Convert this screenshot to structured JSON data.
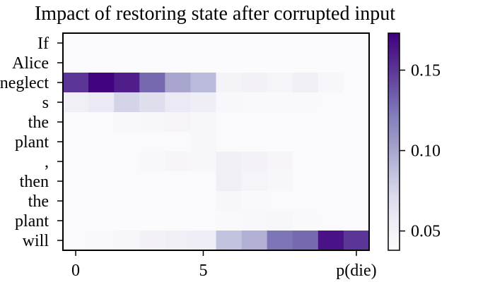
{
  "chart_data": {
    "type": "heatmap",
    "title": "Impact of restoring state after corrupted input",
    "y_labels": [
      "If",
      "Alice",
      "neglect",
      "s",
      "the",
      "plant",
      ",",
      "then",
      "the",
      "plant",
      "will"
    ],
    "x_tick_labels": [
      "0",
      "5",
      "p(die)"
    ],
    "x_tick_positions": [
      0,
      5,
      11
    ],
    "colorbar": {
      "min": 0.038,
      "max": 0.173,
      "ticks": [
        0.05,
        0.1,
        0.15
      ],
      "tick_labels": [
        "0.05",
        "0.10",
        "0.15"
      ],
      "colormap": "Purples",
      "colors": [
        "#fcfbfd",
        "#efedf5",
        "#dadaeb",
        "#bcbddc",
        "#9e9ac8",
        "#807dba",
        "#6a51a3",
        "#54278f",
        "#3f007d"
      ]
    },
    "values": [
      [
        0.039,
        0.039,
        0.039,
        0.039,
        0.039,
        0.039,
        0.039,
        0.039,
        0.039,
        0.039,
        0.039,
        0.039
      ],
      [
        0.039,
        0.039,
        0.039,
        0.039,
        0.039,
        0.039,
        0.039,
        0.039,
        0.039,
        0.039,
        0.039,
        0.039
      ],
      [
        0.15,
        0.172,
        0.16,
        0.13,
        0.1,
        0.09,
        0.048,
        0.05,
        0.047,
        0.052,
        0.044,
        0.039
      ],
      [
        0.052,
        0.058,
        0.075,
        0.068,
        0.058,
        0.055,
        0.043,
        0.042,
        0.042,
        0.042,
        0.041,
        0.04
      ],
      [
        0.04,
        0.041,
        0.043,
        0.044,
        0.046,
        0.044,
        0.041,
        0.04,
        0.04,
        0.04,
        0.04,
        0.039
      ],
      [
        0.039,
        0.039,
        0.04,
        0.04,
        0.041,
        0.044,
        0.04,
        0.04,
        0.039,
        0.039,
        0.039,
        0.039
      ],
      [
        0.039,
        0.04,
        0.041,
        0.043,
        0.045,
        0.044,
        0.051,
        0.049,
        0.045,
        0.041,
        0.04,
        0.039
      ],
      [
        0.039,
        0.039,
        0.04,
        0.041,
        0.041,
        0.041,
        0.053,
        0.047,
        0.044,
        0.04,
        0.039,
        0.039
      ],
      [
        0.039,
        0.039,
        0.039,
        0.039,
        0.04,
        0.04,
        0.044,
        0.042,
        0.041,
        0.04,
        0.039,
        0.039
      ],
      [
        0.039,
        0.039,
        0.039,
        0.039,
        0.04,
        0.04,
        0.042,
        0.043,
        0.044,
        0.042,
        0.04,
        0.039
      ],
      [
        0.04,
        0.042,
        0.044,
        0.05,
        0.052,
        0.055,
        0.085,
        0.095,
        0.125,
        0.13,
        0.165,
        0.15
      ]
    ]
  }
}
